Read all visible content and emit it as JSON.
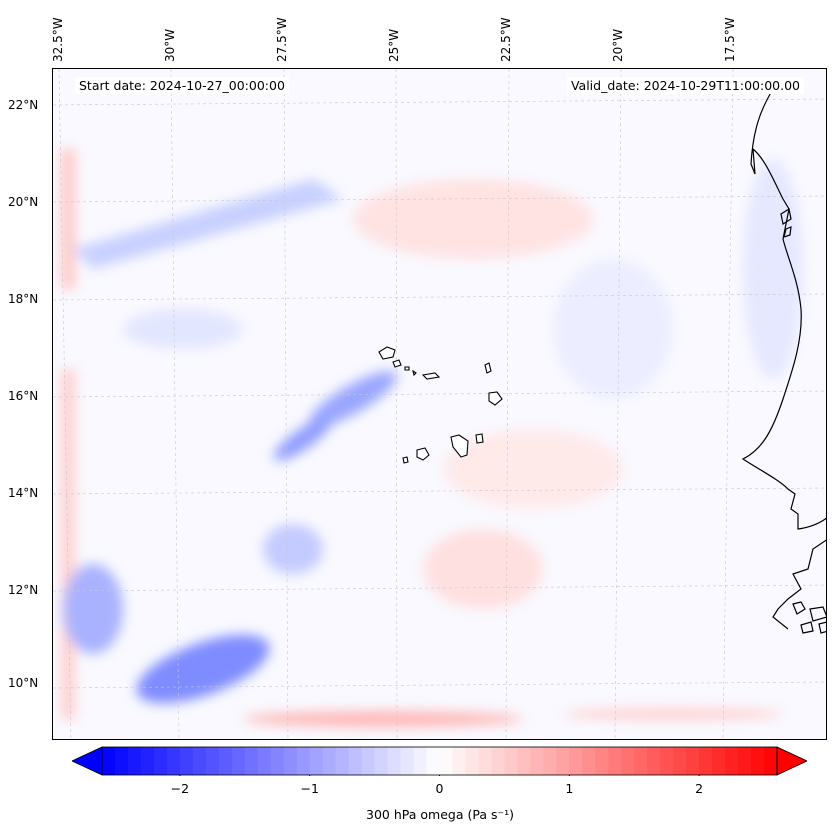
{
  "map": {
    "title_left": "Start date: 2024-10-27_00:00:00",
    "title_right": "Valid_date: 2024-10-29T11:00:00.00",
    "lon_labels": [
      "32.5°W",
      "30°W",
      "27.5°W",
      "25°W",
      "22.5°W",
      "20°W",
      "17.5°W"
    ],
    "lat_labels": [
      "22°N",
      "20°N",
      "18°N",
      "16°N",
      "14°N",
      "12°N",
      "10°N"
    ],
    "field": "300 hPa omega",
    "colors": {
      "negative": "#0000ff",
      "positive": "#ff0000",
      "zero": "#ffffff",
      "coast": "#000000",
      "grid": "#bbbbbb"
    }
  },
  "colorbar": {
    "label": "300 hPa omega (Pa s⁻¹)",
    "ticks": [
      "−2",
      "−1",
      "0",
      "1",
      "2"
    ],
    "tick_values": [
      -2,
      -1,
      0,
      1,
      2
    ],
    "range": [
      -2.6,
      2.6
    ],
    "levels": 52
  }
}
